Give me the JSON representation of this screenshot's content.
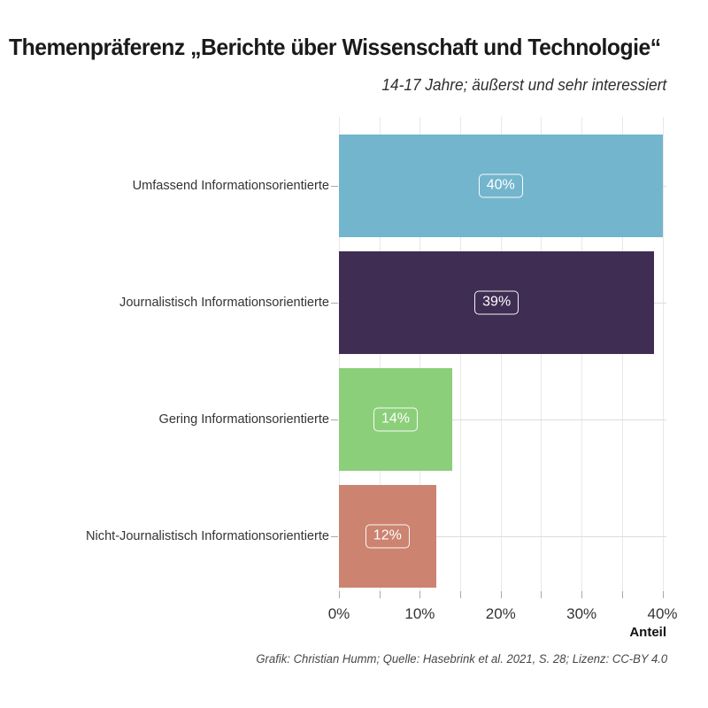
{
  "chart_data": {
    "type": "bar",
    "orientation": "horizontal",
    "title": "Themenpräferenz „Berichte über Wissenschaft und Technologie“",
    "subtitle": "14-17 Jahre; äußerst und sehr interessiert",
    "categories": [
      "Umfassend Informationsorientierte",
      "Journalistisch Informationsorientierte",
      "Gering Informationsorientierte",
      "Nicht-Journalistisch Informationsorientierte"
    ],
    "values": [
      40,
      39,
      14,
      12
    ],
    "value_labels": [
      "40%",
      "39%",
      "14%",
      "12%"
    ],
    "bar_colors": [
      "#73b5cd",
      "#3f2d53",
      "#8bcf7a",
      "#cc8370"
    ],
    "xlabel": "Anteil",
    "xlim": [
      0,
      40
    ],
    "x_tick_labels": [
      "0%",
      "10%",
      "20%",
      "30%",
      "40%"
    ],
    "x_tick_values": [
      0,
      10,
      20,
      30,
      40
    ],
    "x_minor_step": 5,
    "legend": "none",
    "grid": "on",
    "caption": "Grafik: Christian Humm; Quelle: Hasebrink et al. 2021, S. 28; Lizenz: CC-BY 4.0"
  }
}
